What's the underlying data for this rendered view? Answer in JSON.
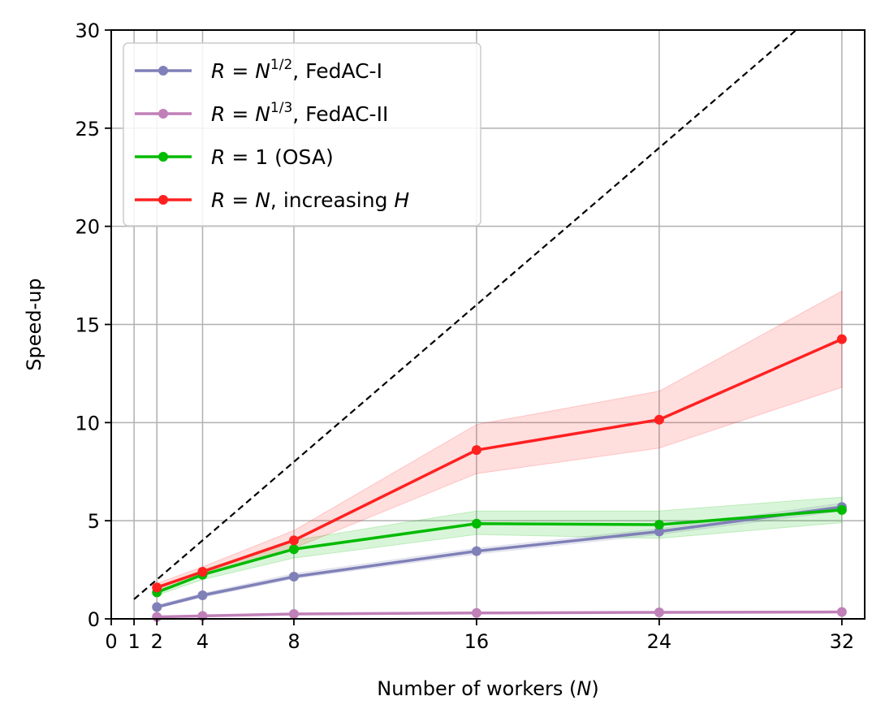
{
  "chart_data": {
    "type": "line",
    "xlabel_main": "Number of workers (",
    "xlabel_var": "N",
    "xlabel_close": ")",
    "ylabel": "Speed-up",
    "xlim": [
      0,
      33
    ],
    "ylim": [
      0,
      30
    ],
    "xticks": [
      0,
      1,
      2,
      4,
      8,
      16,
      24,
      32
    ],
    "yticks": [
      0,
      5,
      10,
      15,
      20,
      25,
      30
    ],
    "grid": true,
    "legend_position": "top-left",
    "reference_line": {
      "style": "dashed",
      "color": "#000000",
      "x": [
        1,
        30
      ],
      "y": [
        1,
        30
      ]
    },
    "x": [
      2,
      4,
      8,
      16,
      24,
      32
    ],
    "series": [
      {
        "legend": {
          "pre": "R",
          "eq": " = ",
          "var": "N",
          "sup": "1/2",
          "post": ", FedAC-I"
        },
        "color": "#8080b8",
        "values": [
          0.6,
          1.2,
          2.15,
          3.45,
          4.45,
          5.7
        ],
        "lower": [
          0.55,
          1.1,
          2.05,
          3.3,
          4.3,
          5.5
        ],
        "upper": [
          0.7,
          1.3,
          2.3,
          3.6,
          4.6,
          5.9
        ]
      },
      {
        "legend": {
          "pre": "R",
          "eq": " = ",
          "var": "N",
          "sup": "1/3",
          "post": ", FedAC-II"
        },
        "color": "#c080b8",
        "values": [
          0.1,
          0.15,
          0.25,
          0.3,
          0.33,
          0.35
        ],
        "lower": [
          0.08,
          0.13,
          0.22,
          0.27,
          0.3,
          0.32
        ],
        "upper": [
          0.12,
          0.17,
          0.28,
          0.33,
          0.36,
          0.38
        ]
      },
      {
        "legend": {
          "pre": "R",
          "eq": " = ",
          "var": "",
          "sup": "",
          "post": "1 (OSA)"
        },
        "color": "#00bb00",
        "values": [
          1.35,
          2.25,
          3.55,
          4.85,
          4.8,
          5.55
        ],
        "lower": [
          1.2,
          2.0,
          3.1,
          4.3,
          4.1,
          4.9
        ],
        "upper": [
          1.5,
          2.5,
          4.0,
          5.5,
          5.5,
          6.2
        ]
      },
      {
        "legend": {
          "pre": "R",
          "eq": " = ",
          "var": "N",
          "sup": "",
          "post": ", increasing ",
          "var2": "H"
        },
        "color": "#ff2020",
        "values": [
          1.6,
          2.4,
          4.0,
          8.6,
          10.15,
          14.25
        ],
        "lower": [
          1.45,
          2.2,
          3.6,
          7.4,
          8.7,
          11.8
        ],
        "upper": [
          1.8,
          2.65,
          4.5,
          9.9,
          11.6,
          16.7
        ]
      }
    ]
  }
}
